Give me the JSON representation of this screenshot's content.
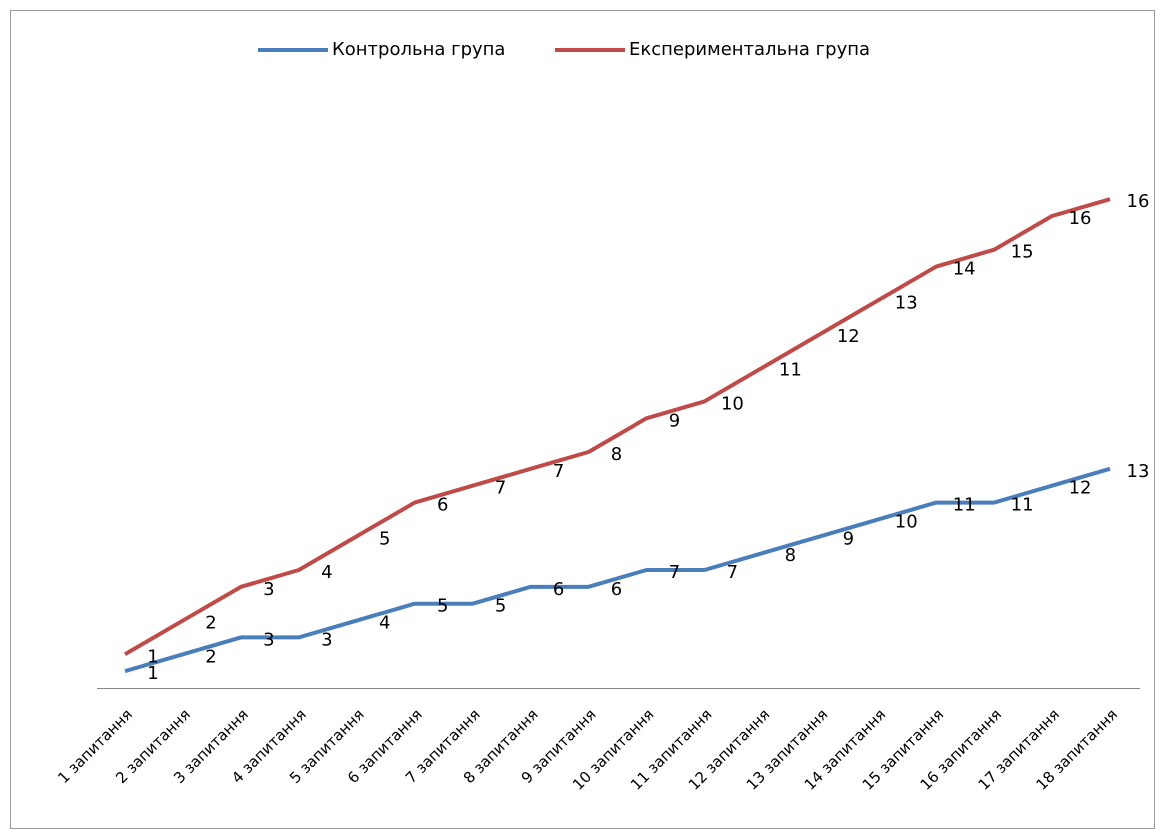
{
  "chart_data": {
    "type": "line",
    "stacked": true,
    "categories": [
      "1 запитання",
      "2 запитання",
      "3 запитання",
      "4 запитання",
      "5 запитання",
      "6 запитання",
      "7 запитання",
      "8 запитання",
      "9 запитання",
      "10 запитання",
      "11 запитання",
      "12 запитання",
      "13 запитання",
      "14 запитання",
      "15 запитання",
      "16 запитання",
      "17 запитання",
      "18 запитання"
    ],
    "series": [
      {
        "name": "Контрольна група",
        "color": "#4a7ebb",
        "values": [
          1,
          2,
          3,
          3,
          4,
          5,
          5,
          6,
          6,
          7,
          7,
          8,
          9,
          10,
          11,
          11,
          12,
          13
        ]
      },
      {
        "name": "Експериментальна група",
        "color": "#be4b48",
        "values": [
          1,
          2,
          3,
          4,
          5,
          6,
          7,
          7,
          8,
          9,
          10,
          11,
          12,
          13,
          14,
          15,
          16,
          16
        ]
      }
    ],
    "ylim": [
      0,
      35
    ],
    "legend": "top"
  }
}
